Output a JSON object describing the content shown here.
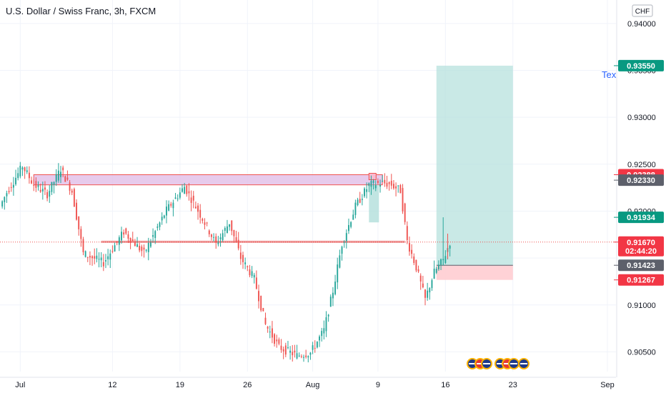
{
  "header": {
    "title": "U.S. Dollar / Swiss Franc, 3h, FXCM",
    "currency_badge": "CHF",
    "side_label": "Tex"
  },
  "colors": {
    "up": "#26a69a",
    "down": "#ef5350",
    "grid": "#f0f3fa",
    "axis_text": "#131722",
    "zone_fill": "#e1bee7",
    "zone_border": "#ef5350",
    "target_fill": "#b2dfdb",
    "stop_fill": "#ffcdd2",
    "tag_green": "#089981",
    "tag_red": "#f23645",
    "tag_gray": "#5d606b"
  },
  "chart_data": {
    "type": "candlestick",
    "symbol": "USDCHF",
    "title": "U.S. Dollar / Swiss Franc, 3h, FXCM",
    "x_ticks": [
      "Jul",
      "12",
      "19",
      "26",
      "Aug",
      "9",
      "16",
      "23",
      "Sep"
    ],
    "y_ticks": [
      0.905,
      0.91,
      0.915,
      0.92,
      0.925,
      0.93,
      0.935,
      0.94
    ],
    "y_tick_labels": [
      "0.90500",
      "0.91000",
      "",
      "0.92000",
      "0.92500",
      "0.93000",
      "0.93500",
      "0.94000"
    ],
    "ylim": [
      0.9029,
      0.9425
    ],
    "grid": true,
    "price_path_anchors": [
      {
        "t": 0,
        "p": 0.9205
      },
      {
        "t": 3,
        "p": 0.922
      },
      {
        "t": 10,
        "p": 0.9248
      },
      {
        "t": 15,
        "p": 0.9228
      },
      {
        "t": 21,
        "p": 0.9218
      },
      {
        "t": 27,
        "p": 0.9245
      },
      {
        "t": 32,
        "p": 0.9221
      },
      {
        "t": 37,
        "p": 0.9155
      },
      {
        "t": 46,
        "p": 0.9145
      },
      {
        "t": 55,
        "p": 0.9178
      },
      {
        "t": 64,
        "p": 0.9155
      },
      {
        "t": 74,
        "p": 0.9201
      },
      {
        "t": 82,
        "p": 0.9226
      },
      {
        "t": 90,
        "p": 0.9192
      },
      {
        "t": 96,
        "p": 0.9165
      },
      {
        "t": 102,
        "p": 0.9188
      },
      {
        "t": 107,
        "p": 0.915
      },
      {
        "t": 113,
        "p": 0.9128
      },
      {
        "t": 118,
        "p": 0.9079
      },
      {
        "t": 124,
        "p": 0.9055
      },
      {
        "t": 132,
        "p": 0.9046
      },
      {
        "t": 138,
        "p": 0.9049
      },
      {
        "t": 144,
        "p": 0.9073
      },
      {
        "t": 148,
        "p": 0.9115
      },
      {
        "t": 152,
        "p": 0.9165
      },
      {
        "t": 158,
        "p": 0.9205
      },
      {
        "t": 164,
        "p": 0.9228
      },
      {
        "t": 170,
        "p": 0.923
      },
      {
        "t": 174,
        "p": 0.9228
      },
      {
        "t": 178,
        "p": 0.9222
      },
      {
        "t": 181,
        "p": 0.9168
      },
      {
        "t": 185,
        "p": 0.914
      },
      {
        "t": 189,
        "p": 0.9106
      },
      {
        "t": 193,
        "p": 0.9135
      },
      {
        "t": 197,
        "p": 0.9148
      },
      {
        "t": 200,
        "p": 0.9167
      }
    ],
    "overlays": {
      "supply_zone": {
        "t_start": 15,
        "t_end": 170,
        "price_top": 0.92388,
        "price_bottom": 0.9228
      },
      "support_line": {
        "t_start": 45,
        "t_end": 180,
        "price": 0.91673
      },
      "long_position": {
        "t_start": 194,
        "t_end": 228,
        "entry": 0.91423,
        "target": 0.9355,
        "stop": 0.91267
      }
    },
    "price_tags": [
      {
        "label": "0.93550",
        "price": 0.9355,
        "kind": "green"
      },
      {
        "label": "0.92388",
        "price": 0.92388,
        "kind": "red"
      },
      {
        "label": "0.92330",
        "price": 0.9233,
        "kind": "gray"
      },
      {
        "label": "0.91934",
        "price": 0.91934,
        "kind": "green"
      },
      {
        "label": "0.91670",
        "price": 0.9167,
        "kind": "red",
        "sub": "02:44:20"
      },
      {
        "label": "0.91423",
        "price": 0.91423,
        "kind": "gray"
      },
      {
        "label": "0.91267",
        "price": 0.91267,
        "kind": "red"
      }
    ],
    "current_price": 0.9167
  }
}
